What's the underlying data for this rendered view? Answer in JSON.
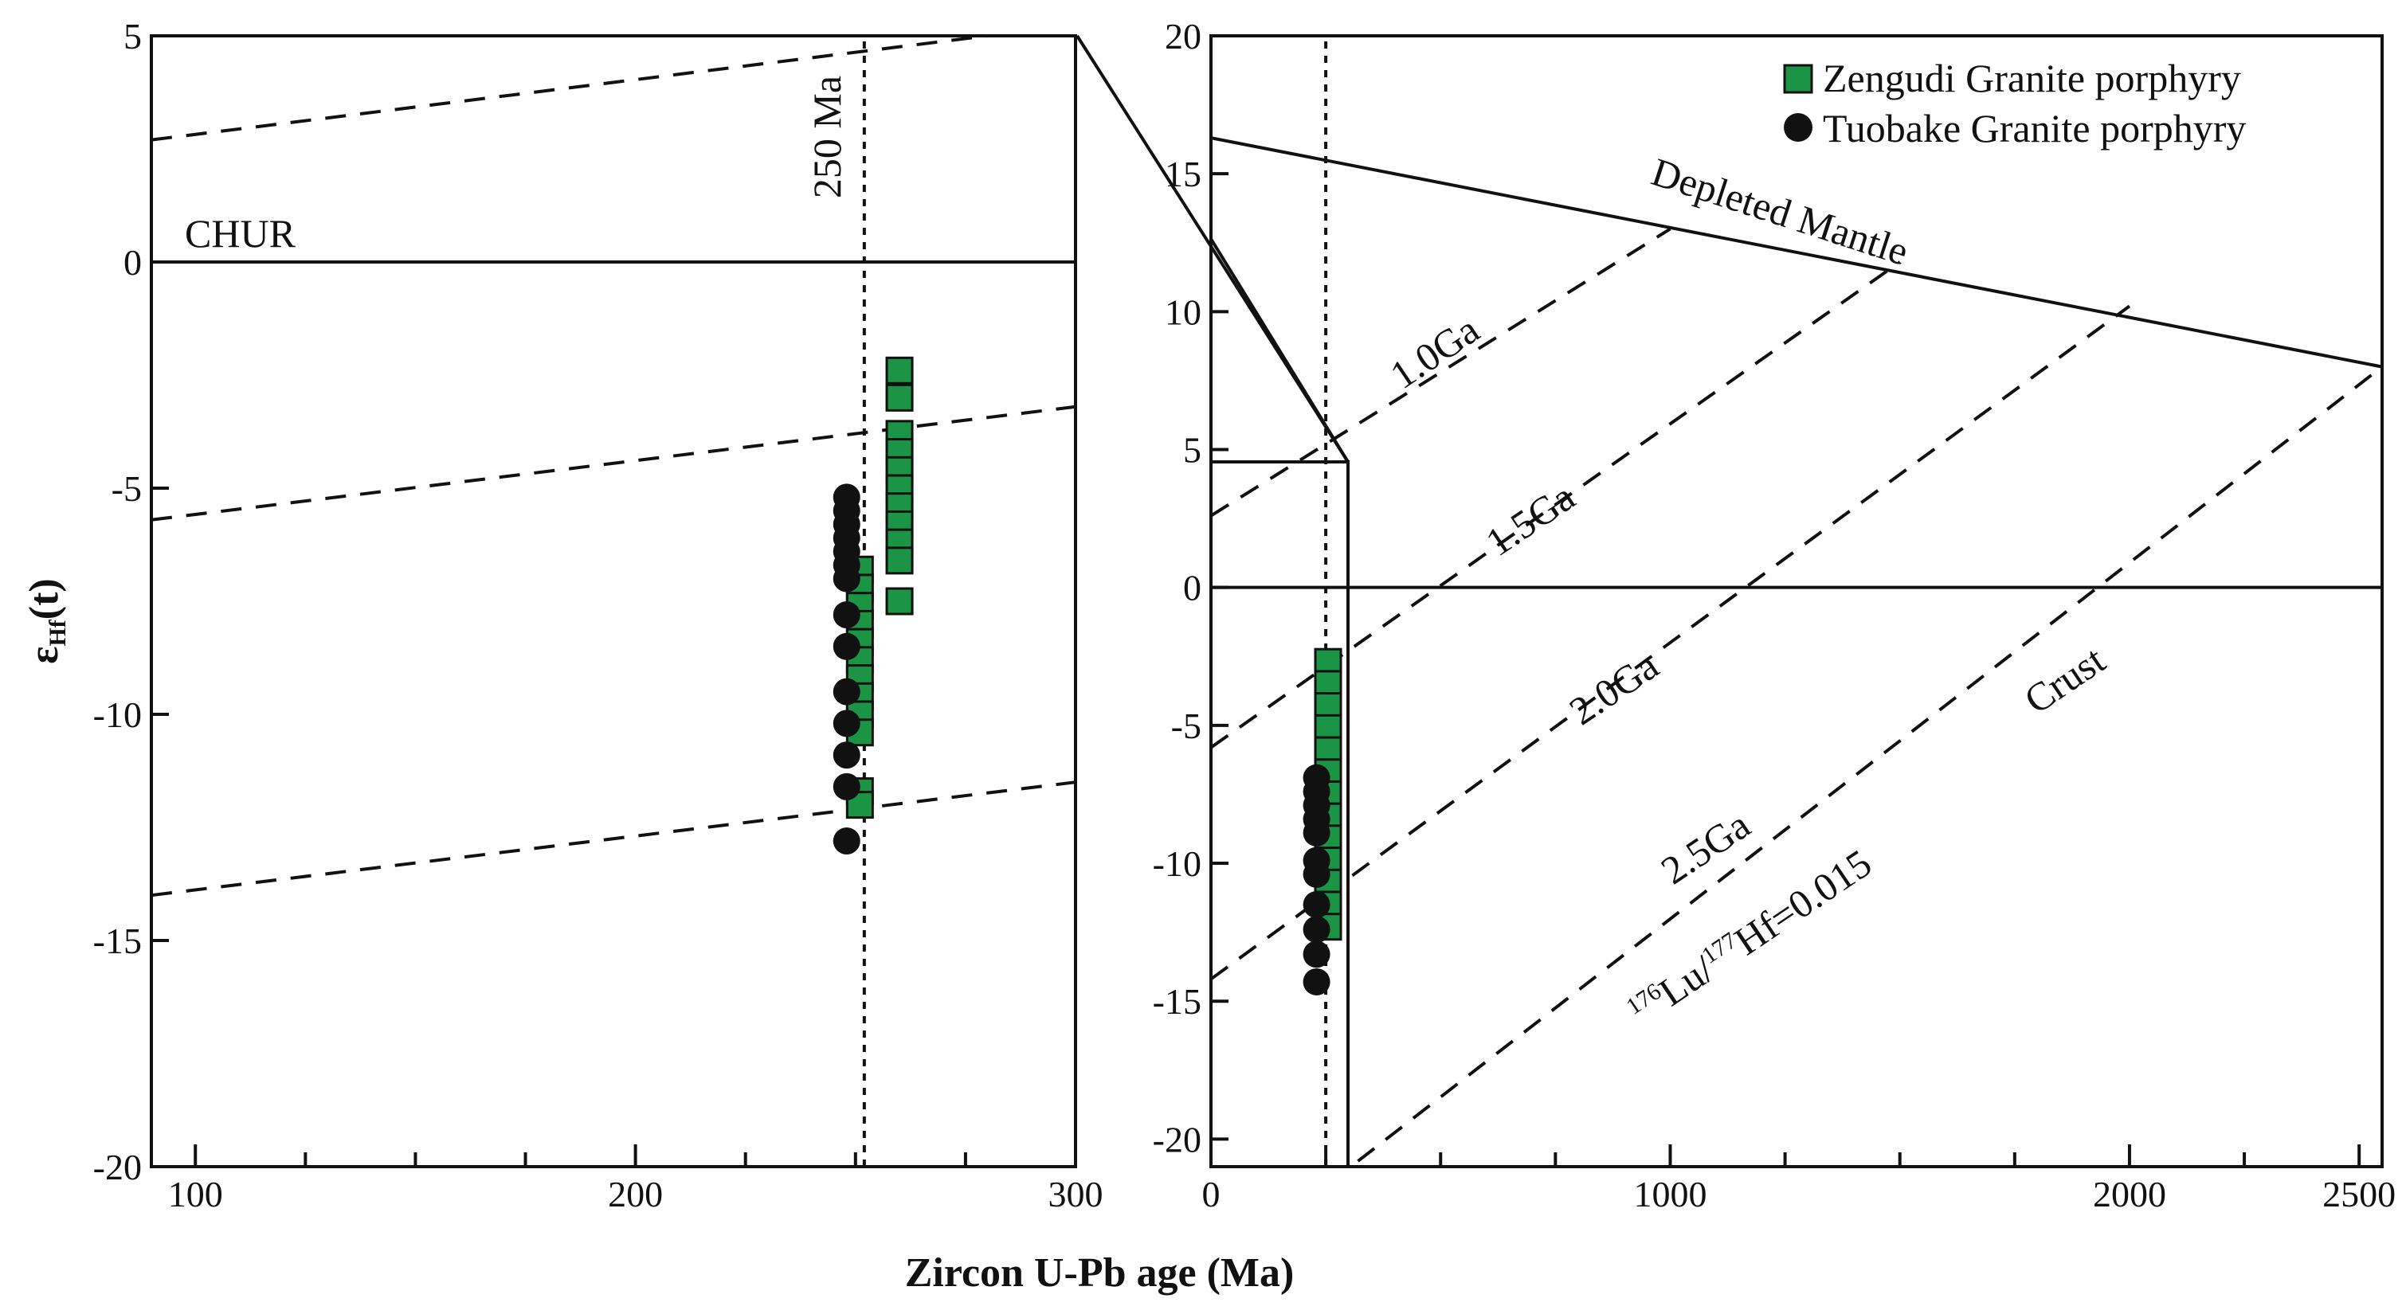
{
  "chart_data": [
    {
      "type": "scatter",
      "panel": "left",
      "xlim": [
        90,
        300
      ],
      "ylim": [
        -20,
        5
      ],
      "xticks": [
        "100",
        "200",
        "300"
      ],
      "yticks": [
        "5",
        "0",
        "-5",
        "-10",
        "-15",
        "-20"
      ],
      "ylabel": {
        "main": "ε",
        "sub": "Hf",
        "suffix": "(t)"
      },
      "annotations": {
        "chur": "CHUR",
        "age_line": "250 Ma"
      },
      "age_line_x": 252,
      "reference_lines": [
        {
          "name": "upper-dashed",
          "x": [
            90,
            280
          ],
          "y": [
            2.7,
            5.0
          ]
        },
        {
          "name": "middle-dashed",
          "x": [
            90,
            300
          ],
          "y": [
            -5.7,
            -3.2
          ]
        },
        {
          "name": "lower-dashed",
          "x": [
            90,
            300
          ],
          "y": [
            -14.0,
            -11.5
          ]
        }
      ],
      "series": [
        {
          "name": "Zengudi Granite porphyry",
          "marker": "square",
          "color": "#1b9446",
          "points": [
            [
              260,
              -2.4
            ],
            [
              260,
              -3.0
            ],
            [
              260,
              -3.8
            ],
            [
              260,
              -4.2
            ],
            [
              260,
              -4.6
            ],
            [
              260,
              -5.0
            ],
            [
              260,
              -5.4
            ],
            [
              260,
              -5.8
            ],
            [
              260,
              -6.2
            ],
            [
              260,
              -6.6
            ],
            [
              260,
              -7.5
            ],
            [
              251,
              -6.8
            ],
            [
              251,
              -7.2
            ],
            [
              251,
              -7.6
            ],
            [
              251,
              -8.0
            ],
            [
              251,
              -8.4
            ],
            [
              251,
              -8.8
            ],
            [
              251,
              -9.2
            ],
            [
              251,
              -9.6
            ],
            [
              251,
              -10.0
            ],
            [
              251,
              -10.4
            ],
            [
              251,
              -11.7
            ],
            [
              251,
              -12.0
            ]
          ]
        },
        {
          "name": "Tuobake Granite porphyry",
          "marker": "circle",
          "color": "#111111",
          "points": [
            [
              248,
              -5.2
            ],
            [
              248,
              -5.5
            ],
            [
              248,
              -5.8
            ],
            [
              248,
              -6.1
            ],
            [
              248,
              -6.4
            ],
            [
              248,
              -6.7
            ],
            [
              248,
              -7.0
            ],
            [
              248,
              -7.8
            ],
            [
              248,
              -8.5
            ],
            [
              248,
              -9.5
            ],
            [
              248,
              -10.2
            ],
            [
              248,
              -10.9
            ],
            [
              248,
              -11.6
            ],
            [
              248,
              -12.8
            ]
          ]
        }
      ]
    },
    {
      "type": "scatter",
      "panel": "right",
      "xlim": [
        0,
        2550
      ],
      "ylim": [
        -21,
        20
      ],
      "xticks": [
        "0",
        "1000",
        "2000",
        "2500"
      ],
      "yticks": [
        "20",
        "15",
        "10",
        "5",
        "0",
        "-5",
        "-10",
        "-15",
        "-20"
      ],
      "xlabel": "Zircon U-Pb age (Ma)",
      "annotations": {
        "depleted_mantle": "Depleted Mantle",
        "crust": "Crust",
        "ga_1": "1.0Ga",
        "ga_1_5": "1.5Ga",
        "ga_2": "2.0Ga",
        "ga_2_5": "2.5Ga",
        "ratio_sup1": "176",
        "ratio_lu": "Lu/",
        "ratio_sup2": "177",
        "ratio_hf": "Hf=0.015"
      },
      "age_line_x": 250,
      "reference_lines": [
        {
          "name": "depleted-mantle",
          "x": [
            0,
            2550
          ],
          "y": [
            16.3,
            8.0
          ]
        },
        {
          "name": "chur",
          "x": [
            0,
            2550
          ],
          "y": [
            0,
            0
          ]
        },
        {
          "name": "evolution-1.0Ga",
          "x": [
            0,
            1000
          ],
          "y": [
            2.6,
            13.0
          ]
        },
        {
          "name": "evolution-1.5Ga",
          "x": [
            0,
            1500
          ],
          "y": [
            -5.8,
            11.8
          ]
        },
        {
          "name": "evolution-2.0Ga",
          "x": [
            0,
            2000
          ],
          "y": [
            -14.2,
            10.2
          ]
        },
        {
          "name": "evolution-2.5Ga",
          "x": [
            320,
            2550
          ],
          "y": [
            -20.8,
            8.0
          ]
        }
      ],
      "series": [
        {
          "name": "Zengudi Granite porphyry",
          "marker": "square",
          "color": "#1b9446",
          "points": [
            [
              255,
              -2.7
            ],
            [
              255,
              -3.5
            ],
            [
              255,
              -4.3
            ],
            [
              255,
              -5.1
            ],
            [
              255,
              -5.9
            ],
            [
              255,
              -6.7
            ],
            [
              255,
              -7.5
            ],
            [
              255,
              -8.3
            ],
            [
              255,
              -9.1
            ],
            [
              255,
              -9.9
            ],
            [
              255,
              -10.7
            ],
            [
              255,
              -11.5
            ],
            [
              255,
              -12.3
            ]
          ]
        },
        {
          "name": "Tuobake Granite porphyry",
          "marker": "circle",
          "color": "#111111",
          "points": [
            [
              230,
              -6.9
            ],
            [
              230,
              -7.4
            ],
            [
              230,
              -7.9
            ],
            [
              230,
              -8.4
            ],
            [
              230,
              -8.9
            ],
            [
              230,
              -9.9
            ],
            [
              230,
              -10.4
            ],
            [
              230,
              -11.5
            ],
            [
              230,
              -12.4
            ],
            [
              230,
              -13.3
            ],
            [
              230,
              -14.3
            ]
          ]
        }
      ],
      "legend": {
        "position": "top-right",
        "items": [
          "Zengudi Granite porphyry",
          "Tuobake Granite porphyry"
        ]
      }
    }
  ]
}
